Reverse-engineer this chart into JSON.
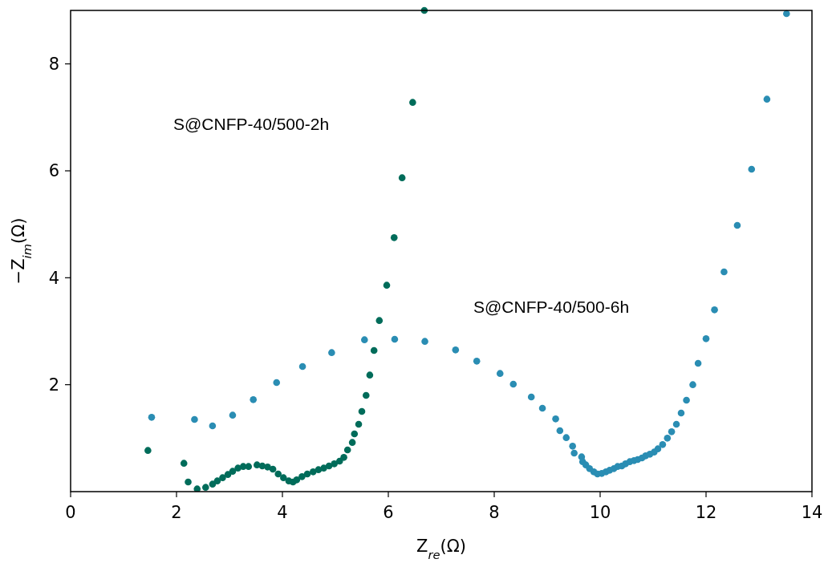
{
  "chart_data": {
    "type": "scatter",
    "xlabel": "Z$_{re}$(Ω)",
    "ylabel": "−Z$_{im}$(Ω)",
    "xlim": [
      0,
      14
    ],
    "ylim": [
      0,
      9
    ],
    "xticks": [
      0,
      2,
      4,
      6,
      8,
      10,
      12,
      14
    ],
    "yticks": [
      2,
      4,
      6,
      8
    ],
    "grid": false,
    "marker": "circle",
    "annotations": [
      "S@CNFP-40/500-2h",
      "S@CNFP-40/500-6h"
    ],
    "series": [
      {
        "color": "#006c5a",
        "x": [
          1.46,
          2.14,
          2.22,
          2.39,
          2.55,
          2.68,
          2.77,
          2.87,
          2.97,
          3.06,
          3.16,
          3.26,
          3.36,
          3.52,
          3.62,
          3.72,
          3.82,
          3.92,
          4.02,
          4.12,
          4.2,
          4.27,
          4.37,
          4.47,
          4.58,
          4.68,
          4.78,
          4.88,
          4.98,
          5.08,
          5.16,
          5.23,
          5.32,
          5.36,
          5.44,
          5.5,
          5.58,
          5.65,
          5.73,
          5.83,
          5.97,
          6.11,
          6.26,
          6.46,
          6.68
        ],
        "values": [
          0.77,
          0.53,
          0.18,
          0.05,
          0.08,
          0.14,
          0.2,
          0.26,
          0.32,
          0.38,
          0.44,
          0.47,
          0.47,
          0.5,
          0.48,
          0.46,
          0.42,
          0.33,
          0.26,
          0.2,
          0.18,
          0.22,
          0.28,
          0.33,
          0.37,
          0.41,
          0.44,
          0.48,
          0.52,
          0.57,
          0.64,
          0.78,
          0.92,
          1.08,
          1.26,
          1.5,
          1.8,
          2.18,
          2.64,
          3.2,
          3.86,
          4.75,
          5.87,
          7.28,
          9.0
        ]
      },
      {
        "color": "#2a8db3",
        "x": [
          1.53,
          2.34,
          2.68,
          3.06,
          3.45,
          3.89,
          4.38,
          4.93,
          5.55,
          6.12,
          6.69,
          7.27,
          7.67,
          8.11,
          8.36,
          8.7,
          8.91,
          9.16,
          9.24,
          9.36,
          9.48,
          9.51,
          9.65,
          9.67,
          9.73,
          9.8,
          9.88,
          9.95,
          10.03,
          10.11,
          10.18,
          10.26,
          10.33,
          10.41,
          10.48,
          10.56,
          10.64,
          10.71,
          10.79,
          10.86,
          10.94,
          11.02,
          11.09,
          11.18,
          11.27,
          11.35,
          11.44,
          11.53,
          11.63,
          11.75,
          11.85,
          12.0,
          12.16,
          12.34,
          12.59,
          12.86,
          13.15,
          13.52
        ],
        "values": [
          1.39,
          1.35,
          1.23,
          1.43,
          1.72,
          2.04,
          2.34,
          2.6,
          2.84,
          2.85,
          2.81,
          2.65,
          2.44,
          2.21,
          2.01,
          1.77,
          1.56,
          1.36,
          1.14,
          1.01,
          0.85,
          0.72,
          0.65,
          0.56,
          0.5,
          0.43,
          0.37,
          0.33,
          0.34,
          0.37,
          0.4,
          0.43,
          0.47,
          0.48,
          0.52,
          0.56,
          0.58,
          0.6,
          0.63,
          0.67,
          0.7,
          0.74,
          0.8,
          0.88,
          1.0,
          1.12,
          1.26,
          1.47,
          1.71,
          2.0,
          2.4,
          2.86,
          3.4,
          4.11,
          4.98,
          6.03,
          7.34,
          8.94
        ]
      }
    ]
  }
}
